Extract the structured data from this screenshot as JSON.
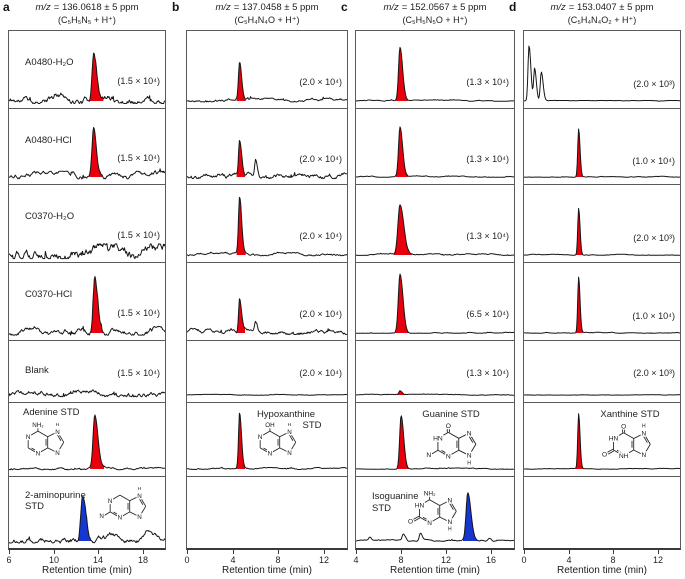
{
  "axis": {
    "xlabel": "Retention time (min)"
  },
  "colors": {
    "red": "#e8000d",
    "blue": "#1536cf",
    "trace": "#161616",
    "border": "#5a5a5a",
    "text": "#1c1c1c"
  },
  "molecules": {
    "adenine": {
      "top_label": "NH₂",
      "top_double": false,
      "left_label": null,
      "left_double": false,
      "n1": "N",
      "n3": "N",
      "n7": "N",
      "n9": "N",
      "n7_h": true,
      "n9_h": false
    },
    "hypoxanthine": {
      "top_label": "OH",
      "top_double": false,
      "left_label": null,
      "left_double": false,
      "n1": "N",
      "n3": "N",
      "n7": "N",
      "n9": "N",
      "n7_h": true,
      "n9_h": false
    },
    "guanine": {
      "top_label": "O",
      "top_double": true,
      "left_label": "H₂N",
      "left_double": false,
      "n1": "HN",
      "n3": "N",
      "n7": "N",
      "n9": "N",
      "n7_h": false,
      "n9_h": true
    },
    "xanthine": {
      "top_label": "O",
      "top_double": true,
      "left_label": "O",
      "left_double": true,
      "n1": "HN",
      "n3": "NH",
      "n7": "N",
      "n9": "N",
      "n7_h": true,
      "n9_h": false
    },
    "aminopurine2": {
      "top_label": null,
      "top_double": false,
      "left_label": "H₂N",
      "left_double": false,
      "n1": "N",
      "n3": "N",
      "n7": "N",
      "n9": "N",
      "n7_h": true,
      "n9_h": false
    },
    "isoguanine": {
      "top_label": "NH₂",
      "top_double": false,
      "left_label": "O",
      "left_double": true,
      "n1": "HN",
      "n3": "N",
      "n7": "N",
      "n9": "N",
      "n7_h": false,
      "n9_h": true
    }
  },
  "chart_data": {
    "type": "line",
    "xlabel": "Retention time (min)",
    "panels": [
      {
        "letter": "a",
        "mz_label": "m/z",
        "header_rest": "= 136.0618 ± 5 ppm",
        "formula": "(C₅H₅N₅ + H⁺)",
        "xrange": [
          6,
          20
        ],
        "ticks": [
          "6",
          "10",
          "14",
          "18"
        ],
        "rows": [
          {
            "sample": "A0480-H₂O",
            "scale": "(1.5 × 10⁴)",
            "ly": 0.34,
            "sy": 0.58,
            "noise": 0.06,
            "peaks": [
              {
                "rt": 13.6,
                "h": 0.74,
                "w": 0.5,
                "color": "red"
              }
            ]
          },
          {
            "sample": "A0480-HCl",
            "scale": "(1.5 × 10⁴)",
            "ly": 0.34,
            "sy": 0.58,
            "noise": 0.045,
            "peaks": [
              {
                "rt": 13.6,
                "h": 0.8,
                "w": 0.45,
                "color": "red"
              }
            ]
          },
          {
            "sample": "C0370-H₂O",
            "scale": "(1.5 × 10⁴)",
            "ly": 0.34,
            "sy": 0.58,
            "noise": 0.085,
            "peaks": []
          },
          {
            "sample": "C0370-HCl",
            "scale": "(1.5 × 10⁴)",
            "ly": 0.34,
            "sy": 0.58,
            "noise": 0.05,
            "peaks": [
              {
                "rt": 13.7,
                "h": 0.8,
                "w": 0.45,
                "color": "red"
              }
            ]
          },
          {
            "sample": "Blank",
            "scale": "(1.5 × 10⁴)",
            "ly": 0.4,
            "sy": 0.44,
            "noise": 0.05,
            "peaks": []
          },
          {
            "texts": [
              {
                "t": "Adenine STD",
                "x": 0.09,
                "y": 0.06,
                "a": "start"
              }
            ],
            "molecule": "adenine",
            "mol_pos": [
              0.05,
              0.24
            ],
            "mol_size": [
              60,
              44
            ],
            "noise": 0.018,
            "peaks": [
              {
                "rt": 13.7,
                "h": 0.88,
                "w": 0.5,
                "color": "red"
              }
            ]
          },
          {
            "texts": [
              {
                "t": "2-aminopurine",
                "x": 0.1,
                "y": 0.18,
                "a": "start"
              },
              {
                "t": "STD",
                "x": 0.1,
                "y": 0.34,
                "a": "start"
              }
            ],
            "molecule": "aminopurine2",
            "mol_pos": [
              0.58,
              0.1
            ],
            "mol_size": [
              60,
              46
            ],
            "noise": 0.05,
            "peaks": [
              {
                "rt": 12.6,
                "h": 0.78,
                "w": 0.55,
                "color": "blue"
              },
              {
                "rt": 18.4,
                "h": 0.16,
                "w": 1.3,
                "color": "black"
              },
              {
                "rt": 15.0,
                "h": 0.06,
                "w": 0.6,
                "color": "black"
              }
            ]
          }
        ]
      },
      {
        "letter": "b",
        "mz_label": "m/z",
        "header_rest": "= 137.0458 ± 5 ppm",
        "formula": "(C₅H₄N₄O + H⁺)",
        "xrange": [
          0,
          14
        ],
        "ticks": [
          "0",
          "4",
          "8",
          "12"
        ],
        "rows": [
          {
            "scale": "(2.0 × 10⁴)",
            "sy": 0.6,
            "noise": 0.022,
            "peaks": [
              {
                "rt": 4.6,
                "h": 0.56,
                "w": 0.32,
                "color": "red"
              }
            ]
          },
          {
            "scale": "(2.0 × 10⁴)",
            "sy": 0.6,
            "noise": 0.038,
            "peaks": [
              {
                "rt": 4.6,
                "h": 0.56,
                "w": 0.3,
                "color": "red"
              },
              {
                "rt": 6.0,
                "h": 0.3,
                "w": 0.28,
                "color": "black"
              }
            ]
          },
          {
            "scale": "(2.0 × 10⁴)",
            "sy": 0.6,
            "noise": 0.018,
            "peaks": [
              {
                "rt": 4.6,
                "h": 0.86,
                "w": 0.32,
                "color": "red"
              }
            ]
          },
          {
            "scale": "(2.0 × 10⁴)",
            "sy": 0.6,
            "noise": 0.035,
            "peaks": [
              {
                "rt": 4.6,
                "h": 0.52,
                "w": 0.3,
                "color": "red"
              },
              {
                "rt": 6.0,
                "h": 0.17,
                "w": 0.3,
                "color": "black"
              }
            ]
          },
          {
            "scale": "(2.0 × 10⁴)",
            "sy": 0.44,
            "noise": 0.006,
            "peaks": []
          },
          {
            "texts": [
              {
                "t": "Hypoxanthine",
                "x": 0.62,
                "y": 0.08,
                "a": "middle"
              },
              {
                "t": "STD",
                "x": 0.78,
                "y": 0.23,
                "a": "middle"
              }
            ],
            "molecule": "hypoxanthine",
            "mol_pos": [
              0.39,
              0.25
            ],
            "mol_size": [
              60,
              44
            ],
            "noise": 0.012,
            "peaks": [
              {
                "rt": 4.6,
                "h": 0.9,
                "w": 0.3,
                "color": "red"
              }
            ]
          },
          {
            "empty": true
          }
        ]
      },
      {
        "letter": "c",
        "mz_label": "m/z",
        "header_rest": "= 152.0567 ± 5 ppm",
        "formula": "(C₅H₅N₅O + H⁺)",
        "xrange": [
          4,
          18
        ],
        "ticks": [
          "4",
          "8",
          "12",
          "16"
        ],
        "rows": [
          {
            "scale": "(1.3 × 10⁴)",
            "sy": 0.6,
            "noise": 0.008,
            "peaks": [
              {
                "rt": 7.9,
                "h": 0.82,
                "w": 0.42,
                "color": "red"
              }
            ]
          },
          {
            "scale": "(1.3 × 10⁴)",
            "sy": 0.6,
            "noise": 0.008,
            "peaks": [
              {
                "rt": 7.9,
                "h": 0.78,
                "w": 0.42,
                "color": "red"
              }
            ]
          },
          {
            "scale": "(1.3 × 10⁴)",
            "sy": 0.6,
            "noise": 0.01,
            "peaks": [
              {
                "rt": 7.9,
                "h": 0.76,
                "w": 0.6,
                "color": "red"
              }
            ]
          },
          {
            "scale": "(6.5 × 10⁴)",
            "sy": 0.6,
            "noise": 0.008,
            "peaks": [
              {
                "rt": 7.9,
                "h": 0.9,
                "w": 0.48,
                "color": "red"
              }
            ]
          },
          {
            "scale": "(1.3 × 10⁴)",
            "sy": 0.44,
            "noise": 0.008,
            "peaks": [
              {
                "rt": 7.9,
                "h": 0.07,
                "w": 0.3,
                "color": "red"
              }
            ]
          },
          {
            "texts": [
              {
                "t": "Guanine STD",
                "x": 0.6,
                "y": 0.08,
                "a": "middle"
              }
            ],
            "molecule": "guanine",
            "mol_pos": [
              0.44,
              0.26
            ],
            "mol_size": [
              64,
              46
            ],
            "noise": 0.008,
            "peaks": [
              {
                "rt": 8.0,
                "h": 0.88,
                "w": 0.42,
                "color": "red"
              }
            ]
          },
          {
            "texts": [
              {
                "t": "Isoguanine",
                "x": 0.1,
                "y": 0.2,
                "a": "start"
              },
              {
                "t": "STD",
                "x": 0.1,
                "y": 0.36,
                "a": "start"
              }
            ],
            "molecule": "isoguanine",
            "mol_pos": [
              0.33,
              0.16
            ],
            "mol_size": [
              62,
              48
            ],
            "noise": 0.012,
            "peaks": [
              {
                "rt": 13.9,
                "h": 0.8,
                "w": 0.5,
                "color": "blue"
              },
              {
                "rt": 8.2,
                "h": 0.1,
                "w": 0.35,
                "color": "black"
              },
              {
                "rt": 9.7,
                "h": 0.12,
                "w": 0.3,
                "color": "black"
              },
              {
                "rt": 5.2,
                "h": 0.05,
                "w": 0.25,
                "color": "black"
              },
              {
                "rt": 15.8,
                "h": 0.04,
                "w": 0.3,
                "color": "black"
              }
            ]
          }
        ]
      },
      {
        "letter": "d",
        "mz_label": "m/z",
        "header_rest": "= 153.0407 ± 5 ppm",
        "formula": "(C₅H₄N₄O₂ + H⁺)",
        "xrange": [
          0,
          14
        ],
        "ticks": [
          "0",
          "4",
          "8",
          "12"
        ],
        "rows": [
          {
            "scale": "(2.0 × 10³)",
            "sy": 0.62,
            "noise": 0.004,
            "peaks": [
              {
                "rt": 0.45,
                "h": 0.85,
                "w": 0.3,
                "color": "black"
              },
              {
                "rt": 0.95,
                "h": 0.5,
                "w": 0.28,
                "color": "black"
              },
              {
                "rt": 1.55,
                "h": 0.45,
                "w": 0.3,
                "color": "black"
              }
            ]
          },
          {
            "scale": "(1.0 × 10⁴)",
            "sy": 0.62,
            "noise": 0.006,
            "peaks": [
              {
                "rt": 4.9,
                "h": 0.76,
                "w": 0.16,
                "color": "red"
              }
            ]
          },
          {
            "scale": "(2.0 × 10³)",
            "sy": 0.62,
            "noise": 0.006,
            "peaks": [
              {
                "rt": 4.9,
                "h": 0.72,
                "w": 0.16,
                "color": "red"
              }
            ]
          },
          {
            "scale": "(1.0 × 10⁴)",
            "sy": 0.62,
            "noise": 0.006,
            "peaks": [
              {
                "rt": 4.9,
                "h": 0.86,
                "w": 0.16,
                "color": "red"
              }
            ]
          },
          {
            "scale": "(2.0 × 10³)",
            "sy": 0.44,
            "noise": 0.004,
            "peaks": []
          },
          {
            "texts": [
              {
                "t": "Xanthine STD",
                "x": 0.68,
                "y": 0.08,
                "a": "middle"
              }
            ],
            "molecule": "xanthine",
            "mol_pos": [
              0.5,
              0.26
            ],
            "mol_size": [
              62,
              46
            ],
            "noise": 0.005,
            "peaks": [
              {
                "rt": 4.9,
                "h": 0.9,
                "w": 0.18,
                "color": "red"
              }
            ]
          },
          {
            "empty": true
          }
        ]
      }
    ]
  }
}
